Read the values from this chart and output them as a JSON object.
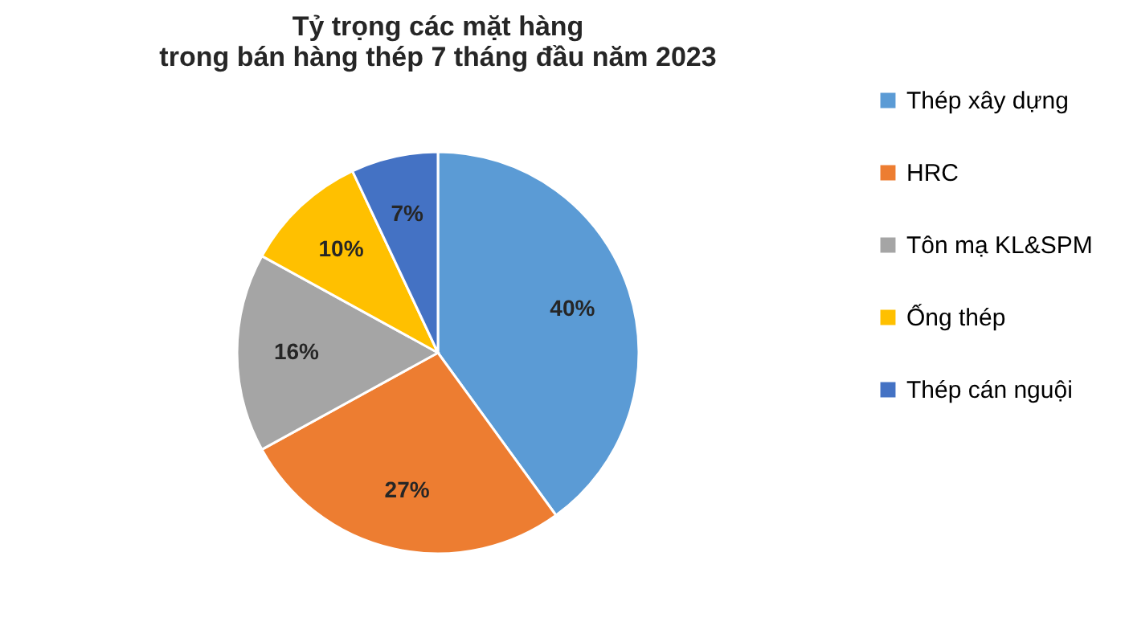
{
  "chart_data": {
    "type": "pie",
    "title": "Tỷ trọng các mặt hàng\ntrong bán hàng thép 7 tháng đầu năm 2023",
    "categories": [
      "Thép xây dựng",
      "HRC",
      "Tôn mạ KL&SPM",
      "Ống thép",
      "Thép cán nguội"
    ],
    "values": [
      40,
      27,
      16,
      10,
      7
    ],
    "colors": [
      "#5b9bd5",
      "#ed7d31",
      "#a5a5a5",
      "#ffc000",
      "#4472c4"
    ],
    "value_labels": [
      "40%",
      "27%",
      "16%",
      "10%",
      "7%"
    ],
    "legend": "right"
  }
}
